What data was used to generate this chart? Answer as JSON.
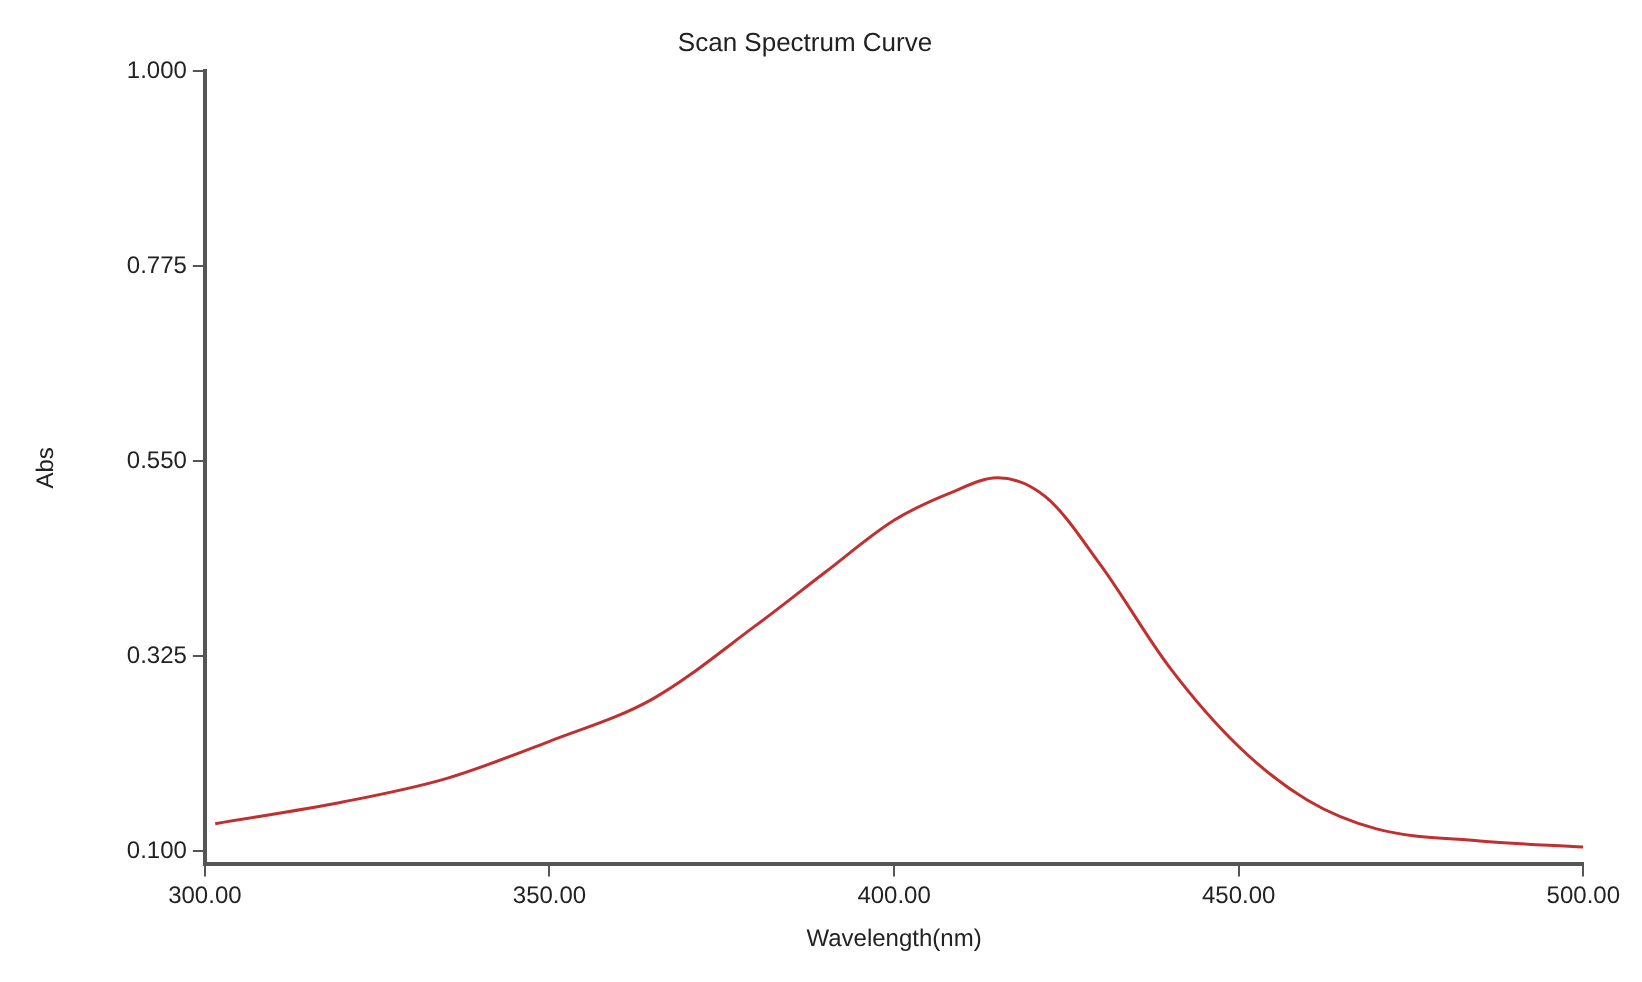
{
  "chart_data": {
    "type": "line",
    "title": "Scan Spectrum Curve",
    "xlabel": "Wavelength(nm)",
    "ylabel": "Abs",
    "xlim": [
      300,
      500
    ],
    "ylim": [
      0.085,
      1.0
    ],
    "xticks": [
      {
        "value": 300,
        "label": "300.00"
      },
      {
        "value": 350,
        "label": "350.00"
      },
      {
        "value": 400,
        "label": "400.00"
      },
      {
        "value": 450,
        "label": "450.00"
      },
      {
        "value": 500,
        "label": "500.00"
      }
    ],
    "yticks": [
      {
        "value": 0.1,
        "label": "0.100"
      },
      {
        "value": 0.325,
        "label": "0.325"
      },
      {
        "value": 0.55,
        "label": "0.550"
      },
      {
        "value": 0.775,
        "label": "0.775"
      },
      {
        "value": 1.0,
        "label": "1.000"
      }
    ],
    "marker": "none",
    "line_style": "solid",
    "series": [
      {
        "color": "#c03030",
        "x": [
          301.5,
          320,
          335,
          350,
          365,
          380,
          390,
          400,
          408,
          415,
          422,
          430,
          440,
          450,
          460,
          470,
          485,
          500
        ],
        "values": [
          0.132,
          0.157,
          0.184,
          0.227,
          0.276,
          0.361,
          0.422,
          0.482,
          0.513,
          0.531,
          0.509,
          0.43,
          0.312,
          0.221,
          0.159,
          0.126,
          0.112,
          0.105
        ]
      }
    ]
  }
}
